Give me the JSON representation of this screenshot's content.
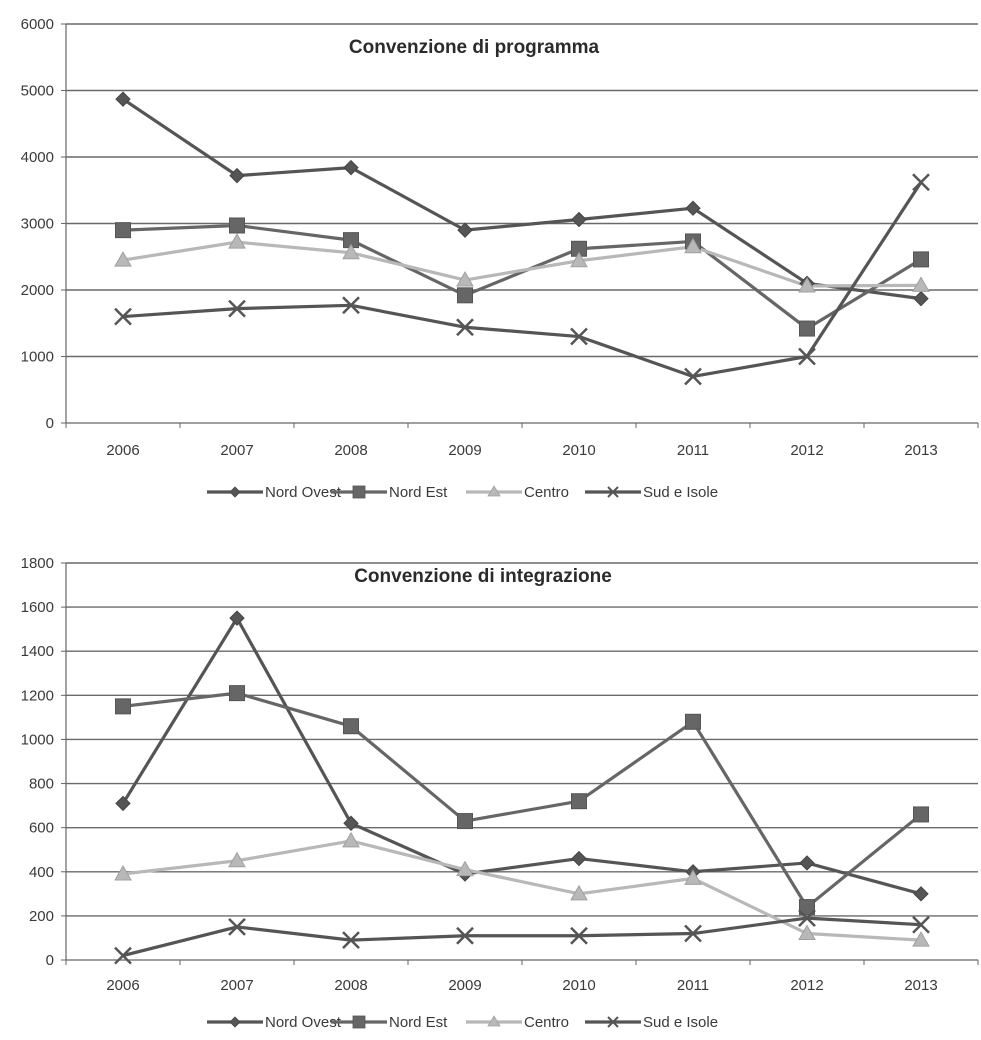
{
  "chart_data": [
    {
      "type": "line",
      "title": "Convenzione di programma",
      "xlabel": "",
      "ylabel": "",
      "categories": [
        "2006",
        "2007",
        "2008",
        "2009",
        "2010",
        "2011",
        "2012",
        "2013"
      ],
      "ylim": [
        0,
        6000
      ],
      "yticks": [
        0,
        1000,
        2000,
        3000,
        4000,
        5000,
        6000
      ],
      "grid": true,
      "legend_position": "bottom",
      "series": [
        {
          "name": "Nord Ovest",
          "marker": "diamond",
          "color": "#555555",
          "values": [
            4870,
            3720,
            3840,
            2900,
            3060,
            3230,
            2100,
            1870
          ]
        },
        {
          "name": "Nord Est",
          "marker": "square",
          "color": "#666666",
          "values": [
            2900,
            2970,
            2750,
            1920,
            2620,
            2730,
            1420,
            2460
          ]
        },
        {
          "name": "Centro",
          "marker": "triangle",
          "color": "#b8b8b8",
          "values": [
            2450,
            2720,
            2560,
            2150,
            2440,
            2650,
            2060,
            2070
          ]
        },
        {
          "name": "Sud e Isole",
          "marker": "x",
          "color": "#555555",
          "values": [
            1600,
            1720,
            1770,
            1440,
            1300,
            700,
            1000,
            3620
          ]
        }
      ]
    },
    {
      "type": "line",
      "title": "Convenzione di integrazione",
      "xlabel": "",
      "ylabel": "",
      "categories": [
        "2006",
        "2007",
        "2008",
        "2009",
        "2010",
        "2011",
        "2012",
        "2013"
      ],
      "ylim": [
        0,
        1800
      ],
      "yticks": [
        0,
        200,
        400,
        600,
        800,
        1000,
        1200,
        1400,
        1600,
        1800
      ],
      "grid": true,
      "legend_position": "bottom",
      "series": [
        {
          "name": "Nord Ovest",
          "marker": "diamond",
          "color": "#555555",
          "values": [
            710,
            1550,
            620,
            390,
            460,
            400,
            440,
            300
          ]
        },
        {
          "name": "Nord Est",
          "marker": "square",
          "color": "#666666",
          "values": [
            1150,
            1210,
            1060,
            630,
            720,
            1080,
            240,
            660
          ]
        },
        {
          "name": "Centro",
          "marker": "triangle",
          "color": "#b8b8b8",
          "values": [
            390,
            450,
            540,
            410,
            300,
            370,
            120,
            90
          ]
        },
        {
          "name": "Sud e Isole",
          "marker": "x",
          "color": "#555555",
          "values": [
            20,
            150,
            90,
            110,
            110,
            120,
            190,
            160
          ]
        }
      ]
    }
  ]
}
